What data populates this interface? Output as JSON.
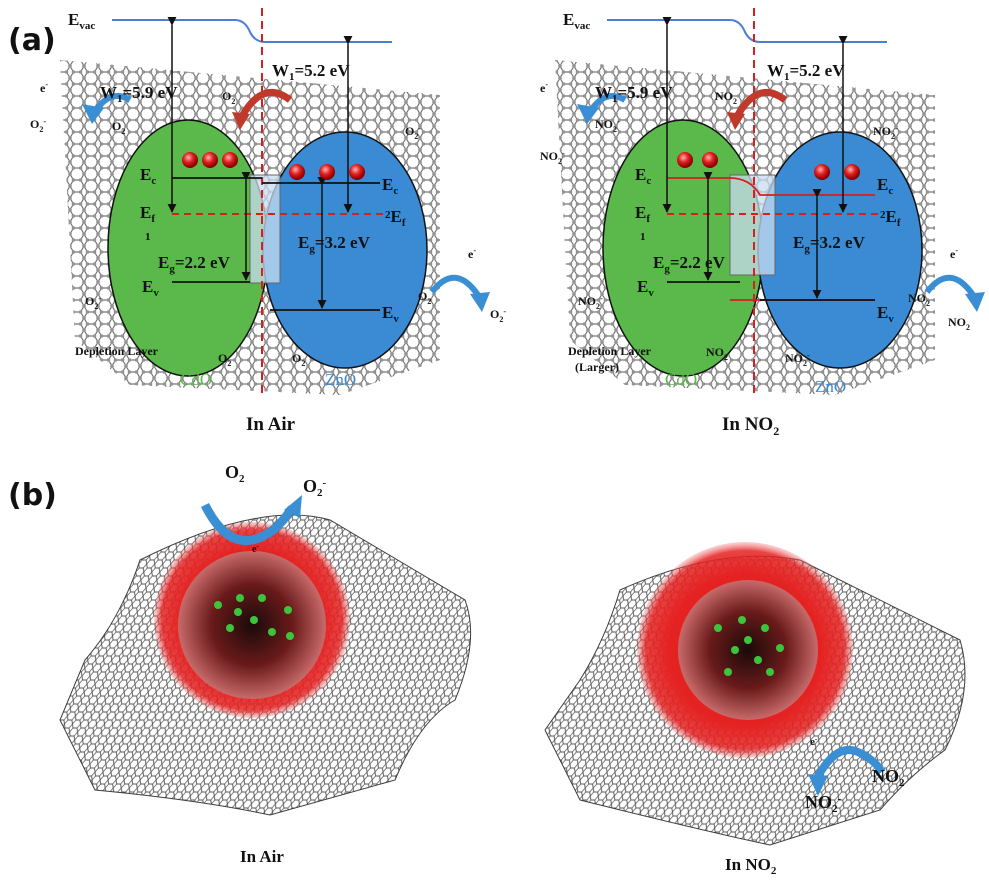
{
  "figure": {
    "panel_a_label": "(a)",
    "panel_b_label": "(b)",
    "left": {
      "caption": "In Air",
      "evac": "E",
      "evac_sub": "vac",
      "w1_left": "W",
      "w1_left_val": "=5.9 eV",
      "w1_right": "W",
      "w1_right_val": "=5.2 eV",
      "ec": "E",
      "ef": "E",
      "ev": "E",
      "eg_left": "=2.2 eV",
      "eg_right": "=3.2 eV",
      "cdo": "CdO",
      "zno": "ZnO",
      "depletion": "Depletion Layer",
      "adsorb": "O",
      "electron": "e",
      "ion": "O",
      "ion_charge": "-"
    },
    "right": {
      "caption": "In NO",
      "caption_sub": "2",
      "evac": "E",
      "evac_sub": "vac",
      "w1_left": "W",
      "w1_left_val": "=5.9 eV",
      "w1_right": "W",
      "w1_right_val": "=5.2 eV",
      "ec": "E",
      "ef": "E",
      "ev": "E",
      "eg_left": "=2.2 eV",
      "eg_right": "=3.2 eV",
      "cdo": "CdO",
      "zno": "ZnO",
      "depletion": "Depletion Layer",
      "depletion2": "(Larger)",
      "adsorb": "NO",
      "electron": "e",
      "ion": "NO",
      "ion_charge": "-"
    },
    "b_left": {
      "caption": "In Air",
      "gas": "O",
      "ion": "O",
      "electron": "e"
    },
    "b_right": {
      "caption": "In NO",
      "caption_sub": "2",
      "gas": "NO",
      "ion": "NO",
      "electron": "e"
    },
    "colors": {
      "cdo_green": "#5bb84a",
      "zno_blue": "#3b8bd4",
      "fermi_red": "#d42020",
      "vac_line": "#4a7fd4",
      "arrow_red": "#c0392b",
      "arrow_blue": "#3a8fd4",
      "shell_red": "#e02020"
    }
  }
}
